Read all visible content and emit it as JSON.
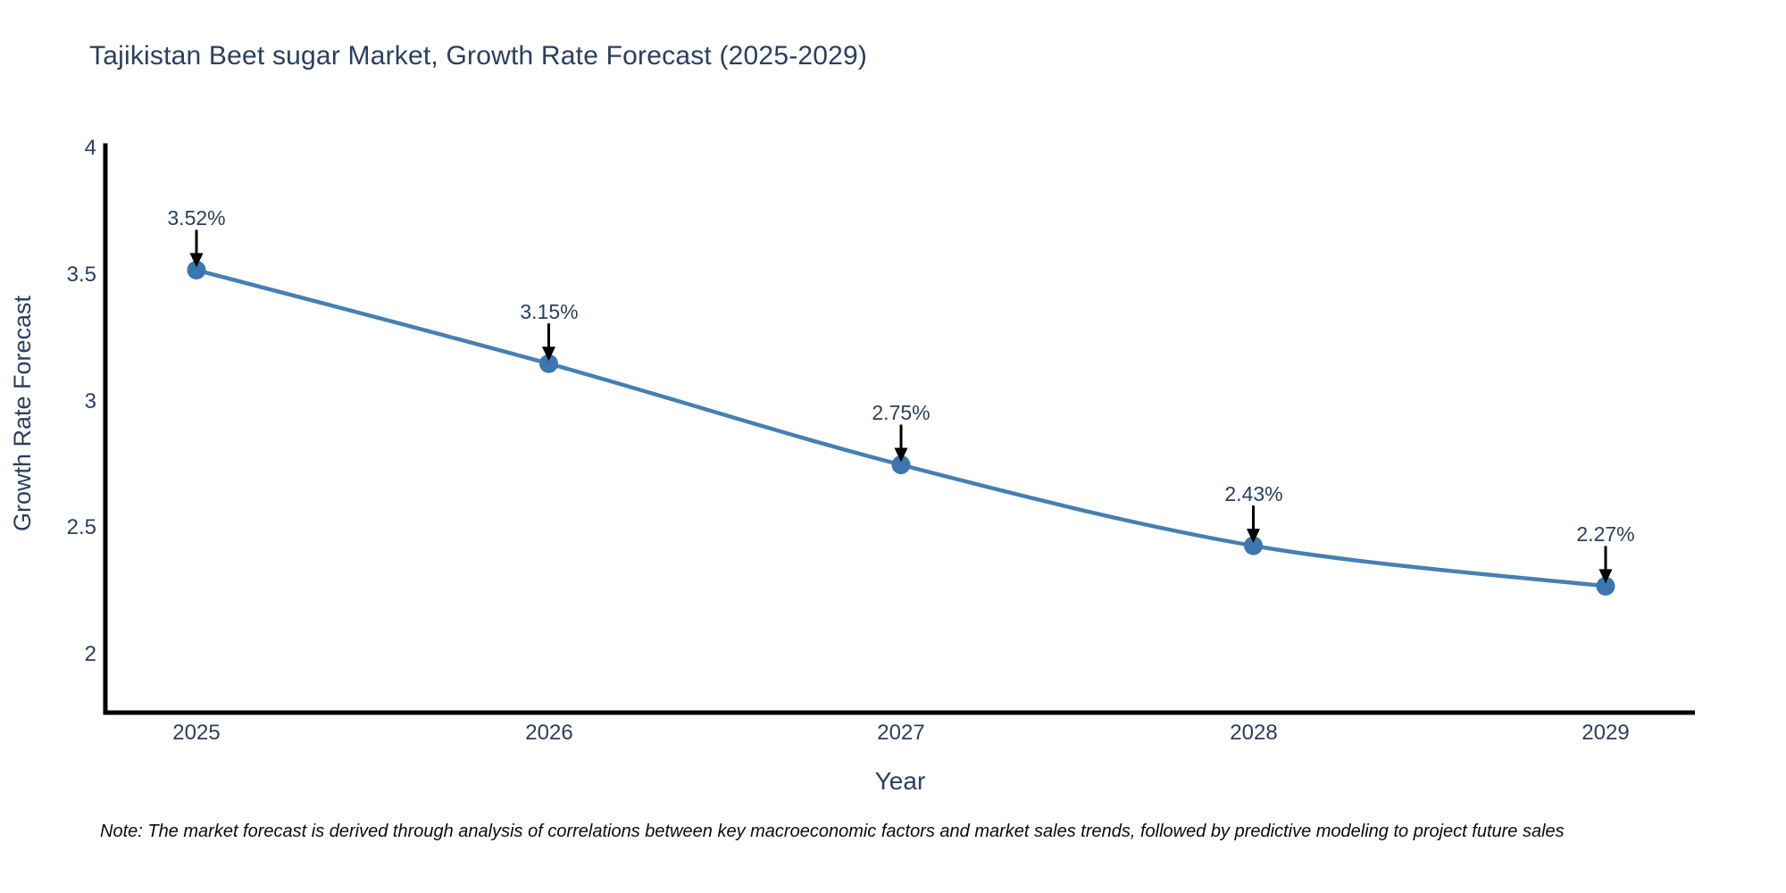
{
  "title": "Tajikistan Beet sugar Market, Growth Rate Forecast (2025-2029)",
  "note": "Note: The market forecast is derived through analysis of correlations between key macroeconomic factors and market sales trends, followed by predictive modeling to project future sales",
  "chart_data": {
    "type": "line",
    "title": "Tajikistan Beet sugar Market, Growth Rate Forecast (2025-2029)",
    "xlabel": "Year",
    "ylabel": "Growth Rate Forecast",
    "x": [
      2025,
      2026,
      2027,
      2028,
      2029
    ],
    "values": [
      3.52,
      3.15,
      2.75,
      2.43,
      2.27
    ],
    "point_labels": [
      "3.52%",
      "3.15%",
      "2.75%",
      "2.43%",
      "2.27%"
    ],
    "xtick_labels": [
      "2025",
      "2026",
      "2027",
      "2028",
      "2029"
    ],
    "yticks": [
      4,
      3.5,
      3,
      2.5,
      2
    ],
    "ytick_labels": [
      "4",
      "3.5",
      "3",
      "2.5",
      "2"
    ],
    "ylim": [
      1.77,
      4.03
    ],
    "line_shape": "spline",
    "grid": false,
    "legend": "none",
    "colors": {
      "line": "#4580b4",
      "marker": "#3b76b0",
      "axis": "#000000",
      "text": "#2a3f5f",
      "annotation_arrow": "#000000",
      "background": "#ffffff"
    }
  }
}
